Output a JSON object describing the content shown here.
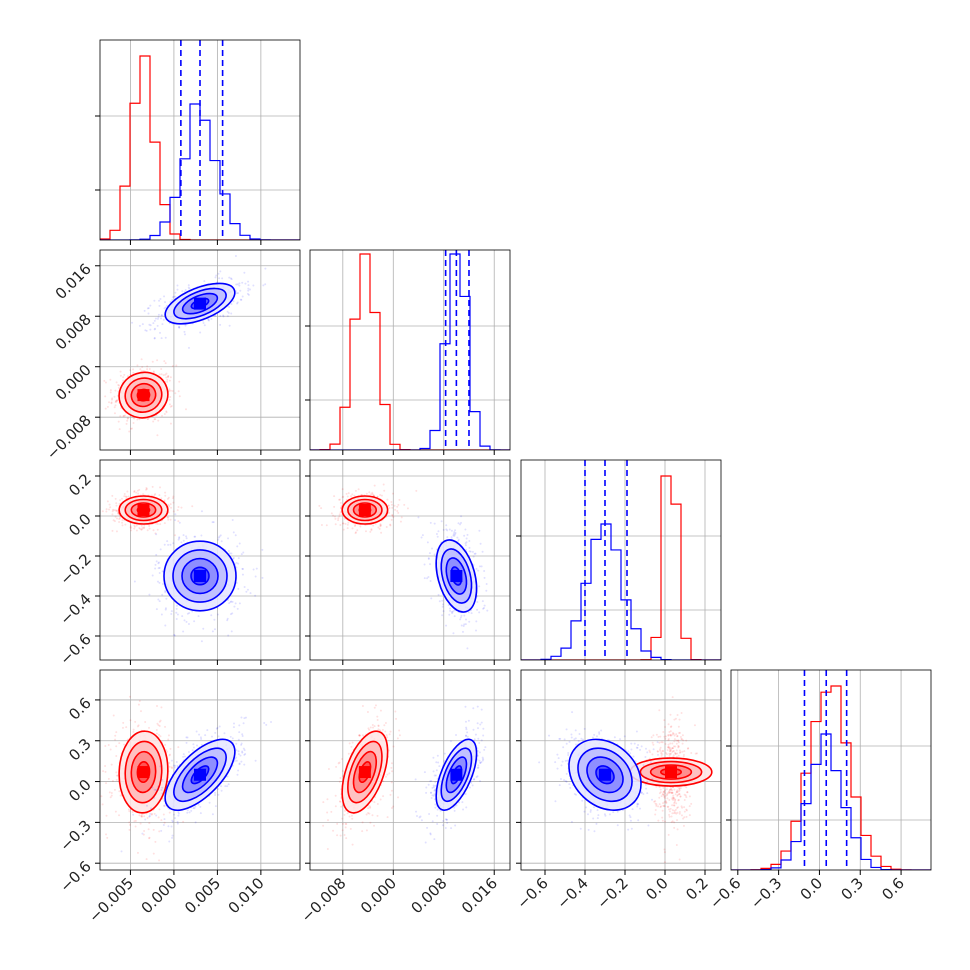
{
  "chart_data": {
    "type": "corner",
    "series": [
      {
        "name": "",
        "color": "#ff0000"
      },
      {
        "name": "",
        "color": "#0000ff"
      }
    ],
    "parameters": [
      {
        "range": [
          -0.0085,
          0.0145
        ],
        "ticks": [
          -0.005,
          0.0,
          0.005,
          0.01
        ],
        "tick_labels": [
          "−0.005",
          "0.000",
          "0.005",
          "0.010"
        ],
        "means": {
          "red": -0.0035,
          "blue": 0.003
        },
        "sigmas": {
          "red": 0.0014,
          "blue": 0.002
        },
        "quantiles": {
          "blue": [
            0.0008,
            0.003,
            0.0056
          ]
        }
      },
      {
        "range": [
          -0.0132,
          0.0185
        ],
        "ticks": [
          -0.008,
          0.0,
          0.008,
          0.016
        ],
        "tick_labels": [
          "−0.008",
          "0.000",
          "0.008",
          "0.016"
        ],
        "means": {
          "red": -0.0045,
          "blue": 0.01
        },
        "sigmas": {
          "red": 0.0018,
          "blue": 0.0016
        },
        "quantiles": {
          "blue": [
            0.0083,
            0.01,
            0.012
          ]
        }
      },
      {
        "range": [
          -0.72,
          0.28
        ],
        "ticks": [
          -0.6,
          -0.4,
          -0.2,
          0.0,
          0.2
        ],
        "tick_labels": [
          "−0.6",
          "−0.4",
          "−0.2",
          "0.0",
          "0.2"
        ],
        "means": {
          "red": 0.03,
          "blue": -0.3
        },
        "sigmas": {
          "red": 0.035,
          "blue": 0.09
        },
        "quantiles": {
          "blue": [
            -0.4,
            -0.3,
            -0.19
          ]
        }
      },
      {
        "range": [
          -0.65,
          0.82
        ],
        "ticks": [
          -0.6,
          -0.3,
          0.0,
          0.3,
          0.6
        ],
        "tick_labels": [
          "−0.6",
          "−0.3",
          "0.0",
          "0.3",
          "0.6"
        ],
        "means": {
          "red": 0.07,
          "blue": 0.05
        },
        "sigmas": {
          "red": 0.15,
          "blue": 0.13
        },
        "quantiles": {
          "blue": [
            -0.11,
            0.05,
            0.2
          ]
        }
      }
    ],
    "correlations": {
      "1_0": {
        "red": 0.05,
        "blue": 0.55
      },
      "2_0": {
        "red": 0.0,
        "blue": 0.0
      },
      "2_1": {
        "red": 0.0,
        "blue": -0.35
      },
      "3_0": {
        "red": 0.05,
        "blue": 0.65
      },
      "3_1": {
        "red": 0.5,
        "blue": 0.6
      },
      "3_2": {
        "red": 0.0,
        "blue": -0.25
      }
    },
    "grid": true,
    "contour_levels_sigma": [
      0.5,
      1.0,
      1.5,
      2.0
    ]
  }
}
